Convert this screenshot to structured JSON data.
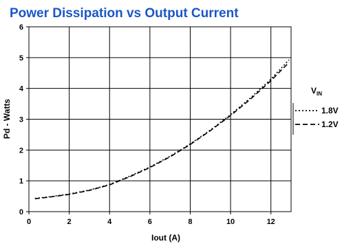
{
  "chart_data": {
    "type": "line",
    "title": "Power Dissipation vs Output Current",
    "xlabel": "Iout (A)",
    "ylabel": "Pd - Watts",
    "xlim": [
      0,
      13
    ],
    "ylim": [
      0,
      6
    ],
    "xticks": [
      0,
      2,
      4,
      6,
      8,
      10,
      12
    ],
    "yticks": [
      0,
      1,
      2,
      3,
      4,
      5,
      6
    ],
    "grid": true,
    "legend": {
      "title": "V",
      "title_subscript": "IN",
      "placement": "right"
    },
    "series": [
      {
        "name": "1.8V",
        "line_style": "dotted",
        "x": [
          0.3,
          1,
          2,
          3,
          4,
          5,
          6,
          7,
          8,
          9,
          10,
          11,
          12,
          12.9
        ],
        "y": [
          0.43,
          0.48,
          0.57,
          0.7,
          0.88,
          1.15,
          1.45,
          1.8,
          2.2,
          2.65,
          3.15,
          3.7,
          4.3,
          4.93
        ]
      },
      {
        "name": "1.2V",
        "line_style": "dashed",
        "x": [
          0.3,
          1,
          2,
          3,
          4,
          5,
          6,
          7,
          8,
          9,
          10,
          11,
          12,
          12.9
        ],
        "y": [
          0.42,
          0.47,
          0.56,
          0.69,
          0.87,
          1.13,
          1.43,
          1.78,
          2.18,
          2.63,
          3.12,
          3.66,
          4.25,
          4.85
        ]
      }
    ]
  },
  "colors": {
    "title": "#1a57c6",
    "lines": "#000000",
    "grid": "#000000"
  }
}
